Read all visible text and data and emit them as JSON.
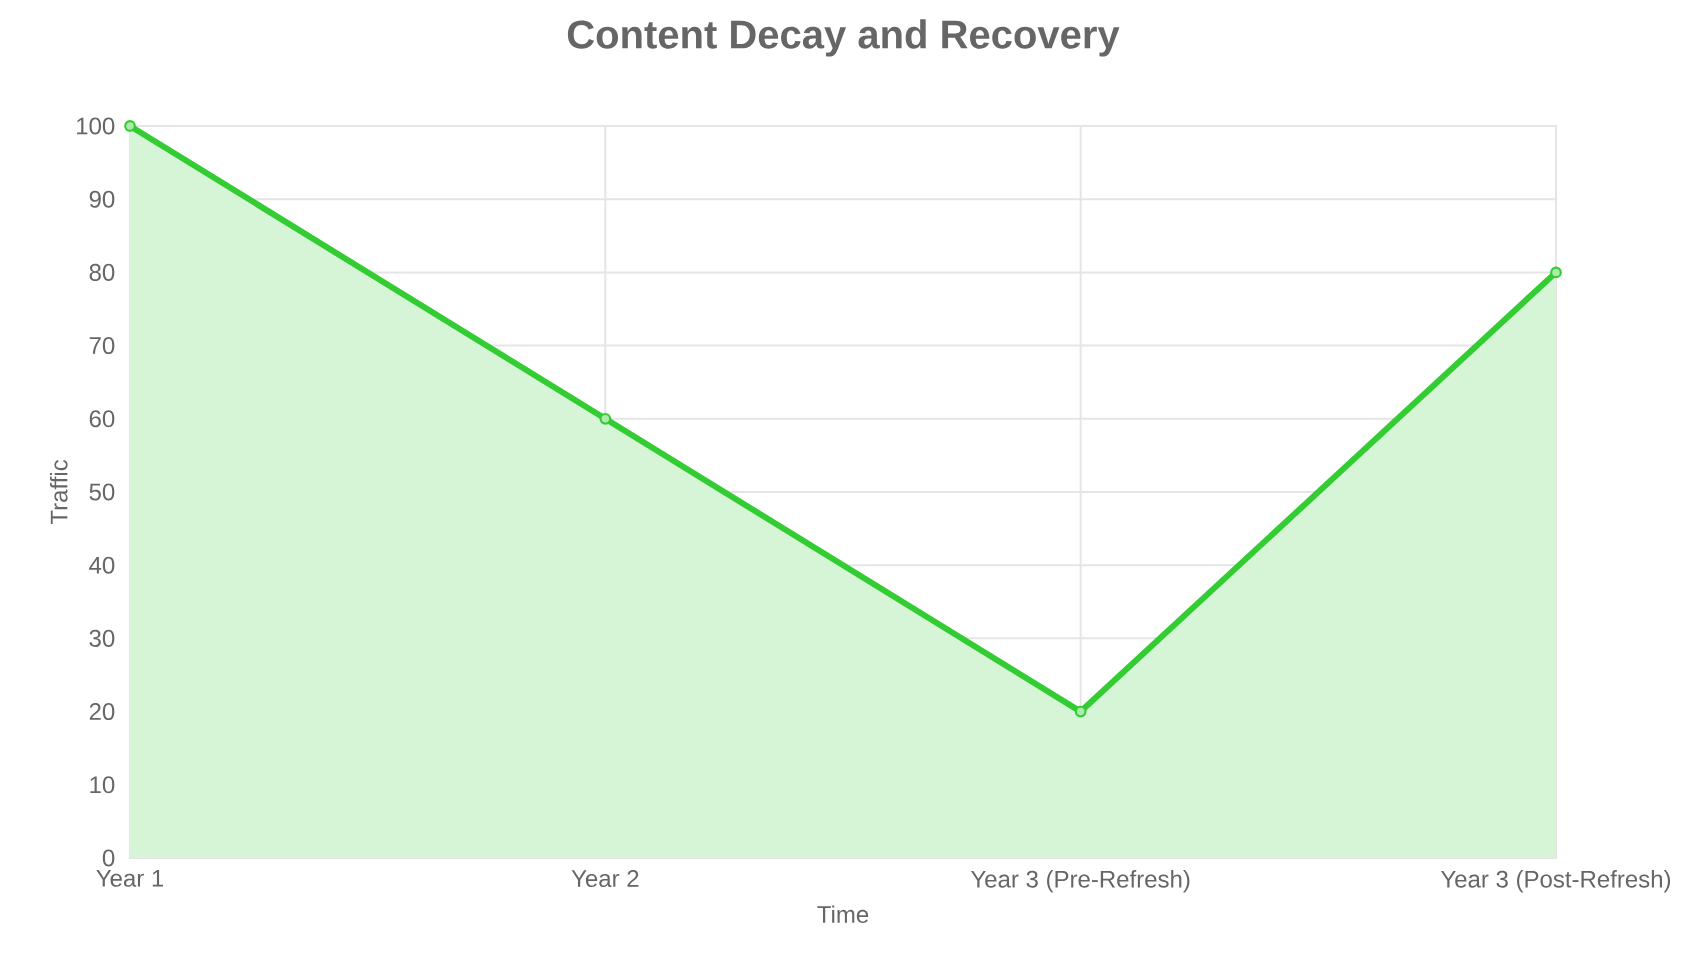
{
  "chart_data": {
    "type": "area",
    "title": "Content Decay and Recovery",
    "xlabel": "Time",
    "ylabel": "Traffic",
    "categories": [
      "Year 1",
      "Year 2",
      "Year 3 (Pre-Refresh)",
      "Year 3 (Post-Refresh)"
    ],
    "values": [
      100,
      60,
      20,
      80
    ],
    "color": "#33cc33",
    "ylim": [
      0,
      100
    ],
    "yticks": [
      0,
      10,
      20,
      30,
      40,
      50,
      60,
      70,
      80,
      90,
      100
    ],
    "grid": true,
    "marker": "circle",
    "line_style": "solid"
  }
}
